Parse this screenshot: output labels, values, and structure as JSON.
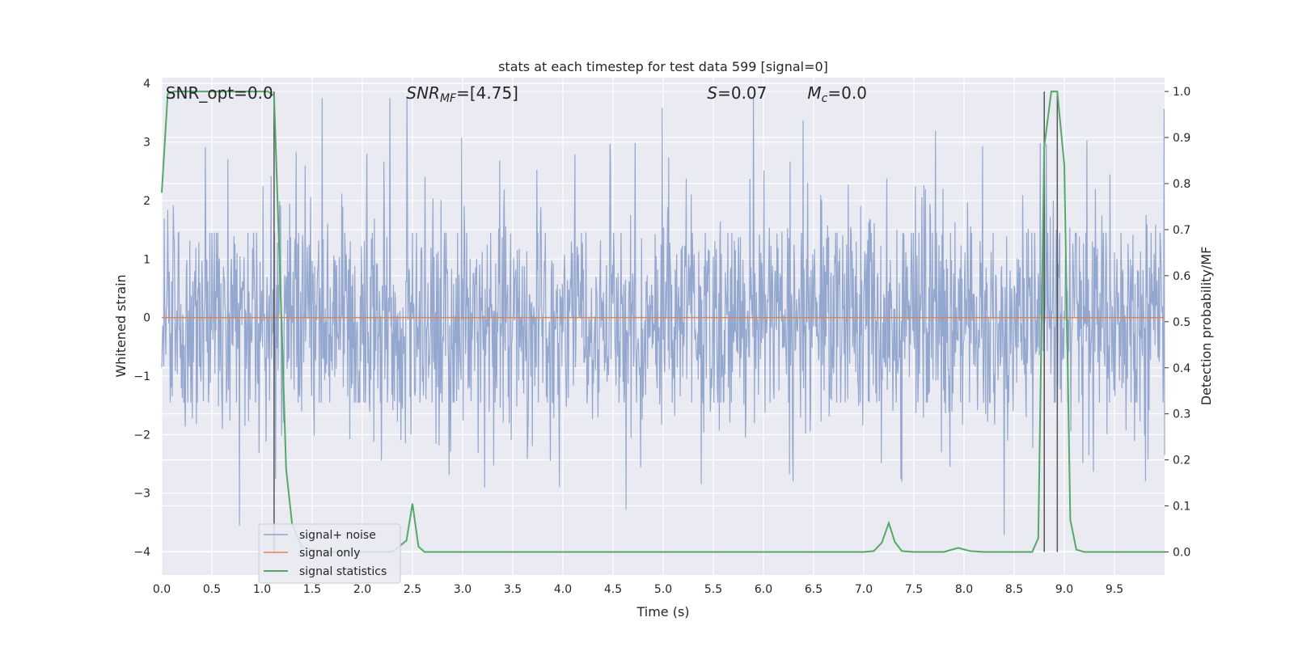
{
  "chart_data": {
    "type": "line",
    "title": "stats at each timestep for test data 599 [signal=0]",
    "xlabel": "Time (s)",
    "ylabel_left": "Whitened strain",
    "ylabel_right": "Detection probability/MF",
    "xlim": [
      0,
      10
    ],
    "ylim_left": [
      -4.4,
      4.1
    ],
    "ylim_right": [
      -0.05,
      1.03
    ],
    "x_ticks": [
      0.0,
      0.5,
      1.0,
      1.5,
      2.0,
      2.5,
      3.0,
      3.5,
      4.0,
      4.5,
      5.0,
      5.5,
      6.0,
      6.5,
      7.0,
      7.5,
      8.0,
      8.5,
      9.0,
      9.5
    ],
    "x_tick_labels": [
      "0.0",
      "0.5",
      "1.0",
      "1.5",
      "2.0",
      "2.5",
      "3.0",
      "3.5",
      "4.0",
      "4.5",
      "5.0",
      "5.5",
      "6.0",
      "6.5",
      "7.0",
      "7.5",
      "8.0",
      "8.5",
      "9.0",
      "9.5"
    ],
    "y_left_ticks": [
      4,
      3,
      2,
      1,
      0,
      -1,
      -2,
      -3,
      -4
    ],
    "y_left_tick_labels": [
      "4",
      "3",
      "2",
      "1",
      "0",
      "−1",
      "−2",
      "−3",
      "−4"
    ],
    "y_right_ticks": [
      1.0,
      0.9,
      0.8,
      0.7,
      0.6,
      0.5,
      0.4,
      0.3,
      0.2,
      0.1,
      0.0
    ],
    "y_right_tick_labels": [
      "1.0",
      "0.9",
      "0.8",
      "0.7",
      "0.6",
      "0.5",
      "0.4",
      "0.3",
      "0.2",
      "0.1",
      "0.0"
    ],
    "grid": true,
    "legend_position": "lower-left",
    "annotations": [
      {
        "name": "snr-opt",
        "plain": "SNR_opt=0.0",
        "x": 0.2
      },
      {
        "name": "snr-mf",
        "italic": "SNR",
        "sub": "MF",
        "rest": "=[4.75]",
        "x": 2.6
      },
      {
        "name": "s-stat",
        "italic": "S",
        "rest": "=0.07",
        "x": 5.6
      },
      {
        "name": "mc",
        "italic": "M",
        "sub": "c",
        "rest": "=0.0",
        "x": 6.6
      }
    ],
    "vertical_lines_x": [
      1.12,
      8.8,
      8.93
    ],
    "series": [
      {
        "name": "signal+ noise",
        "color": "#8fa4cc",
        "axis": "left",
        "kind": "noise",
        "dt": 0.005,
        "amplitude_envelope": 1.45,
        "peak_max": 3.75,
        "peak_min": -4.0
      },
      {
        "name": "signal only",
        "color": "#dd8452",
        "axis": "left",
        "x": [
          0,
          10
        ],
        "y": [
          0,
          0
        ]
      },
      {
        "name": "signal statistics",
        "color": "#55a868",
        "axis": "right",
        "x": [
          0.0,
          0.06,
          0.12,
          0.18,
          0.25,
          0.5,
          0.75,
          1.0,
          1.06,
          1.12,
          1.18,
          1.24,
          1.3,
          1.4,
          1.6,
          2.0,
          2.2,
          2.3,
          2.44,
          2.5,
          2.56,
          2.62,
          3.0,
          4.0,
          5.0,
          6.0,
          6.5,
          7.0,
          7.1,
          7.18,
          7.25,
          7.31,
          7.38,
          7.5,
          7.8,
          7.94,
          8.06,
          8.2,
          8.5,
          8.68,
          8.74,
          8.8,
          8.87,
          8.93,
          9.0,
          9.06,
          9.12,
          9.2,
          9.5,
          10.0
        ],
        "y": [
          0.78,
          0.995,
          1.0,
          1.0,
          1.0,
          1.0,
          1.0,
          1.0,
          1.0,
          0.99,
          0.6,
          0.18,
          0.06,
          0.01,
          0.0,
          0.0,
          0.0,
          0.0,
          0.025,
          0.105,
          0.012,
          0.0,
          0.0,
          0.0,
          0.0,
          0.0,
          0.0,
          0.0,
          0.002,
          0.02,
          0.063,
          0.022,
          0.002,
          0.0,
          0.0,
          0.009,
          0.002,
          0.0,
          0.0,
          0.0,
          0.03,
          0.88,
          1.0,
          1.0,
          0.84,
          0.07,
          0.005,
          0.0,
          0.0,
          0.0
        ]
      }
    ]
  }
}
